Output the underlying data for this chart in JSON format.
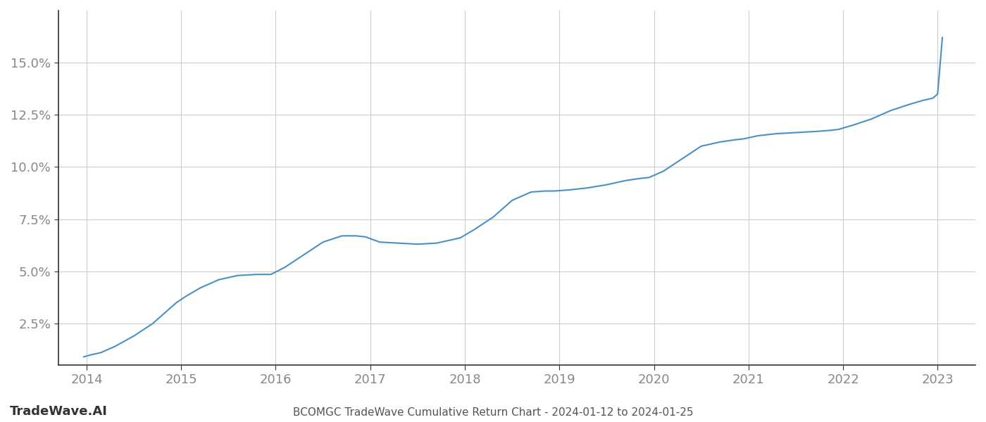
{
  "title": "BCOMGC TradeWave Cumulative Return Chart - 2024-01-12 to 2024-01-25",
  "watermark": "TradeWave.AI",
  "line_color": "#4a90c4",
  "background_color": "#ffffff",
  "grid_color": "#cccccc",
  "x_years": [
    2013.97,
    2014.05,
    2014.15,
    2014.3,
    2014.5,
    2014.7,
    2014.85,
    2014.95,
    2015.05,
    2015.2,
    2015.4,
    2015.6,
    2015.8,
    2015.95,
    2016.1,
    2016.3,
    2016.5,
    2016.7,
    2016.85,
    2016.95,
    2017.1,
    2017.3,
    2017.5,
    2017.7,
    2017.85,
    2017.95,
    2018.1,
    2018.3,
    2018.5,
    2018.7,
    2018.85,
    2018.95,
    2019.1,
    2019.3,
    2019.5,
    2019.7,
    2019.85,
    2019.95,
    2020.1,
    2020.3,
    2020.5,
    2020.7,
    2020.85,
    2020.95,
    2021.1,
    2021.3,
    2021.5,
    2021.7,
    2021.85,
    2021.95,
    2022.1,
    2022.3,
    2022.5,
    2022.7,
    2022.85,
    2022.95,
    2023.0,
    2023.05
  ],
  "y_values": [
    0.9,
    1.0,
    1.1,
    1.4,
    1.9,
    2.5,
    3.1,
    3.5,
    3.8,
    4.2,
    4.6,
    4.8,
    4.85,
    4.85,
    5.2,
    5.8,
    6.4,
    6.7,
    6.7,
    6.65,
    6.4,
    6.35,
    6.3,
    6.35,
    6.5,
    6.6,
    7.0,
    7.6,
    8.4,
    8.8,
    8.85,
    8.85,
    8.9,
    9.0,
    9.15,
    9.35,
    9.45,
    9.5,
    9.8,
    10.4,
    11.0,
    11.2,
    11.3,
    11.35,
    11.5,
    11.6,
    11.65,
    11.7,
    11.75,
    11.8,
    12.0,
    12.3,
    12.7,
    13.0,
    13.2,
    13.3,
    13.5,
    16.2
  ],
  "xlim": [
    2013.7,
    2023.4
  ],
  "ylim_bottom": 0.5,
  "ylim_top": 17.5,
  "yticks": [
    2.5,
    5.0,
    7.5,
    10.0,
    12.5,
    15.0
  ],
  "xticks": [
    2014,
    2015,
    2016,
    2017,
    2018,
    2019,
    2020,
    2021,
    2022,
    2023
  ],
  "line_width": 1.5,
  "spine_color": "#333333",
  "tick_label_color": "#888888",
  "title_color": "#555555",
  "watermark_color": "#333333",
  "title_fontsize": 11,
  "tick_fontsize": 13,
  "watermark_fontsize": 13
}
